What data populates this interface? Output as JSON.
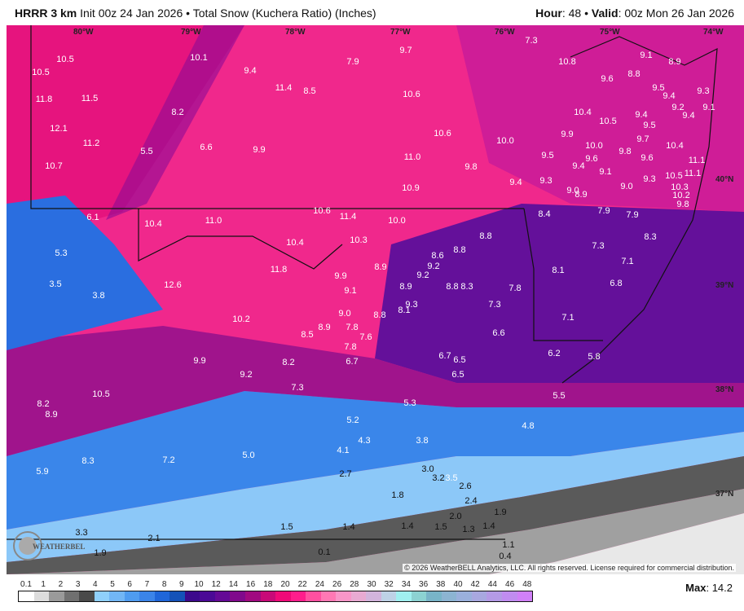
{
  "header": {
    "model": "HRRR 3 km",
    "init": "Init 00z 24 Jan 2026",
    "separator": "•",
    "product": "Total Snow (Kuchera Ratio) (Inches)",
    "hour_label": "Hour",
    "hour_value": ": 48",
    "valid_label": "Valid",
    "valid_value": ": 00z Mon 26 Jan 2026"
  },
  "map": {
    "longitude_labels": [
      "80°W",
      "79°W",
      "78°W",
      "77°W",
      "76°W",
      "75°W",
      "74°W"
    ],
    "latitude_labels": [
      "40°N",
      "39°N",
      "38°N",
      "37°N"
    ],
    "snow_labels": [
      "10.5",
      "10.5",
      "11.8",
      "11.5",
      "12.1",
      "11.2",
      "10.7",
      "5.5",
      "10.1",
      "9.4",
      "11.4",
      "8.5",
      "7.9",
      "9.7",
      "10.6",
      "8.2",
      "6.6",
      "9.9",
      "11.0",
      "10.6",
      "10.0",
      "9.8",
      "10.9",
      "7.3",
      "10.8",
      "9.6",
      "8.8",
      "9.1",
      "8.9",
      "10.4",
      "10.5",
      "9.9",
      "10.0",
      "9.5",
      "9.4",
      "9.6",
      "9.1",
      "9.8",
      "9.4",
      "9.5",
      "9.7",
      "9.6",
      "9.5",
      "9.4",
      "9.2",
      "9.4",
      "9.3",
      "9.1",
      "10.4",
      "11.1",
      "10.5",
      "11.1",
      "10.3",
      "10.2",
      "9.8",
      "9.3",
      "9.0",
      "9.4",
      "9.3",
      "9.0",
      "8.9",
      "7.9",
      "7.9",
      "8.4",
      "8.3",
      "7.3",
      "7.1",
      "8.1",
      "6.8",
      "7.1",
      "7.8",
      "7.3",
      "6.6",
      "8.8",
      "8.8",
      "8.6",
      "9.2",
      "9.2",
      "8.8",
      "8.3",
      "10.6",
      "11.4",
      "10.0",
      "10.3",
      "10.4",
      "11.0",
      "10.4",
      "6.1",
      "5.3",
      "3.5",
      "3.8",
      "12.6",
      "11.8",
      "9.9",
      "9.1",
      "8.9",
      "8.9",
      "9.0",
      "8.8",
      "8.1",
      "9.3",
      "10.2",
      "8.5",
      "8.9",
      "7.8",
      "7.6",
      "7.8",
      "6.7",
      "6.7",
      "6.5",
      "6.5",
      "6.2",
      "5.8",
      "9.9",
      "8.2",
      "9.2",
      "7.3",
      "10.5",
      "8.2",
      "8.9",
      "5.3",
      "5.5",
      "5.2",
      "4.8",
      "4.3",
      "3.8",
      "4.1",
      "5.0",
      "8.3",
      "7.2",
      "5.9",
      "2.7",
      "3.0",
      "3.2",
      "3.5",
      "2.6",
      "2.4",
      "1.8",
      "1.9",
      "2.0",
      "1.4",
      "1.5",
      "1.3",
      "1.4",
      "1.4",
      "1.5",
      "3.3",
      "2.1",
      "1.9",
      "0.1",
      "0.4",
      "1.1"
    ],
    "logo_text": "WeatherBELL"
  },
  "copyright": "© 2026 WeatherBELL Analytics, LLC. All rights reserved. License required for commercial distribution.",
  "colorbar": {
    "ticks": [
      "0.1",
      "1",
      "2",
      "3",
      "4",
      "5",
      "6",
      "7",
      "8",
      "9",
      "10",
      "12",
      "14",
      "16",
      "18",
      "20",
      "22",
      "24",
      "26",
      "28",
      "30",
      "32",
      "34",
      "36",
      "38",
      "40",
      "42",
      "44",
      "46",
      "48"
    ],
    "colors": [
      "#ffffff",
      "#dcdcdc",
      "#9a9a9a",
      "#707070",
      "#4a4a4a",
      "#8fd0fb",
      "#72b6f5",
      "#4f9cf0",
      "#3b84e8",
      "#1f66d9",
      "#1452b8",
      "#3c0a8c",
      "#4b0a96",
      "#640a96",
      "#800a8c",
      "#a00a80",
      "#c80a78",
      "#f00a78",
      "#ff1e8c",
      "#ff50a0",
      "#ff78b4",
      "#f896c8",
      "#e8aad2",
      "#d2b4dc",
      "#bed2e6",
      "#a0f0f0",
      "#8cd2d2",
      "#78b4c8",
      "#8cb4d2",
      "#9ab0dc",
      "#a8a8e0",
      "#b49ae6",
      "#c08cf0",
      "#d080f8"
    ],
    "max_label": "Max",
    "max_value": ": 14.2"
  }
}
